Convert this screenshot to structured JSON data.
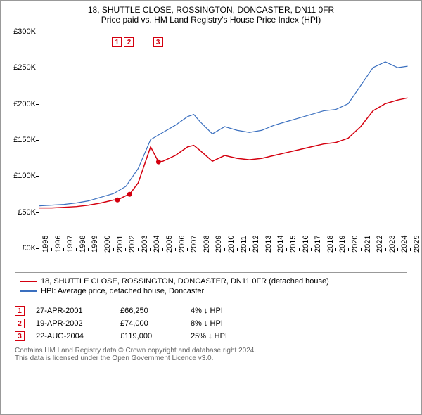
{
  "title_line1": "18, SHUTTLE CLOSE, ROSSINGTON, DONCASTER, DN11 0FR",
  "title_line2": "Price paid vs. HM Land Registry's House Price Index (HPI)",
  "chart": {
    "type": "line",
    "background_color": "#ffffff",
    "axis_color": "#000000",
    "x_years": [
      1995,
      1996,
      1997,
      1998,
      1999,
      2000,
      2001,
      2002,
      2003,
      2004,
      2005,
      2006,
      2007,
      2008,
      2009,
      2010,
      2011,
      2012,
      2013,
      2014,
      2015,
      2016,
      2017,
      2018,
      2019,
      2020,
      2021,
      2022,
      2023,
      2024,
      2025
    ],
    "x_range": [
      1995,
      2025
    ],
    "y_ticks": [
      0,
      50,
      100,
      150,
      200,
      250,
      300
    ],
    "y_tick_prefix": "£",
    "y_tick_suffix": "K",
    "y_range": [
      0,
      300
    ],
    "tick_fontsize": 11,
    "series": [
      {
        "name": "price_paid",
        "label": "18, SHUTTLE CLOSE, ROSSINGTON, DONCASTER, DN11 0FR (detached house)",
        "color": "#d4000f",
        "line_width": 1.5,
        "points": [
          [
            1995.0,
            55
          ],
          [
            1996.0,
            55
          ],
          [
            1997.0,
            56
          ],
          [
            1998.0,
            57
          ],
          [
            1999.0,
            59
          ],
          [
            2000.0,
            62
          ],
          [
            2001.0,
            66
          ],
          [
            2001.32,
            66.25
          ],
          [
            2002.0,
            72
          ],
          [
            2002.3,
            74
          ],
          [
            2003.0,
            90
          ],
          [
            2004.0,
            140
          ],
          [
            2004.64,
            119
          ],
          [
            2005.0,
            120
          ],
          [
            2006.0,
            128
          ],
          [
            2007.0,
            140
          ],
          [
            2007.5,
            142
          ],
          [
            2008.0,
            135
          ],
          [
            2009.0,
            120
          ],
          [
            2010.0,
            128
          ],
          [
            2011.0,
            124
          ],
          [
            2012.0,
            122
          ],
          [
            2013.0,
            124
          ],
          [
            2014.0,
            128
          ],
          [
            2015.0,
            132
          ],
          [
            2016.0,
            136
          ],
          [
            2017.0,
            140
          ],
          [
            2018.0,
            144
          ],
          [
            2019.0,
            146
          ],
          [
            2020.0,
            152
          ],
          [
            2021.0,
            168
          ],
          [
            2022.0,
            190
          ],
          [
            2023.0,
            200
          ],
          [
            2024.0,
            205
          ],
          [
            2024.8,
            208
          ]
        ]
      },
      {
        "name": "hpi",
        "label": "HPI: Average price, detached house, Doncaster",
        "color": "#3a6fbf",
        "line_width": 1.2,
        "points": [
          [
            1995.0,
            58
          ],
          [
            1996.0,
            59
          ],
          [
            1997.0,
            60
          ],
          [
            1998.0,
            62
          ],
          [
            1999.0,
            65
          ],
          [
            2000.0,
            70
          ],
          [
            2001.0,
            75
          ],
          [
            2002.0,
            85
          ],
          [
            2003.0,
            110
          ],
          [
            2004.0,
            150
          ],
          [
            2005.0,
            160
          ],
          [
            2006.0,
            170
          ],
          [
            2007.0,
            182
          ],
          [
            2007.5,
            185
          ],
          [
            2008.0,
            175
          ],
          [
            2009.0,
            158
          ],
          [
            2010.0,
            168
          ],
          [
            2011.0,
            163
          ],
          [
            2012.0,
            160
          ],
          [
            2013.0,
            163
          ],
          [
            2014.0,
            170
          ],
          [
            2015.0,
            175
          ],
          [
            2016.0,
            180
          ],
          [
            2017.0,
            185
          ],
          [
            2018.0,
            190
          ],
          [
            2019.0,
            192
          ],
          [
            2020.0,
            200
          ],
          [
            2021.0,
            225
          ],
          [
            2022.0,
            250
          ],
          [
            2023.0,
            258
          ],
          [
            2024.0,
            250
          ],
          [
            2024.8,
            252
          ]
        ]
      }
    ],
    "sale_markers": [
      {
        "n": "1",
        "year": 2001.32,
        "price": 66.25,
        "color": "#d4000f"
      },
      {
        "n": "2",
        "year": 2002.3,
        "price": 74.0,
        "color": "#d4000f"
      },
      {
        "n": "3",
        "year": 2004.64,
        "price": 119.0,
        "color": "#d4000f"
      }
    ],
    "marker_box_y_offset_k": 292
  },
  "legend": {
    "border_color": "#999999"
  },
  "sales": [
    {
      "n": "1",
      "date": "27-APR-2001",
      "price": "£66,250",
      "diff": "4% ↓ HPI",
      "color": "#d4000f"
    },
    {
      "n": "2",
      "date": "19-APR-2002",
      "price": "£74,000",
      "diff": "8% ↓ HPI",
      "color": "#d4000f"
    },
    {
      "n": "3",
      "date": "22-AUG-2004",
      "price": "£119,000",
      "diff": "25% ↓ HPI",
      "color": "#d4000f"
    }
  ],
  "footer_line1": "Contains HM Land Registry data © Crown copyright and database right 2024.",
  "footer_line2": "This data is licensed under the Open Government Licence v3.0."
}
